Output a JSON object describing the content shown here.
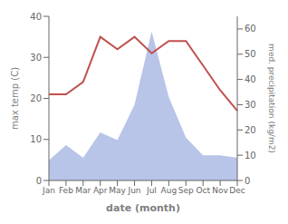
{
  "chart_data": {
    "type": "line",
    "categories": [
      "Jan",
      "Feb",
      "Mar",
      "Apr",
      "May",
      "Jun",
      "Jul",
      "Aug",
      "Sep",
      "Oct",
      "Nov",
      "Dec"
    ],
    "series": [
      {
        "type": "area",
        "axis": "y2",
        "color": "#b8c4e8",
        "values": [
          8,
          14,
          9,
          19,
          16,
          30,
          59,
          33,
          17,
          10,
          10,
          9
        ]
      },
      {
        "type": "line",
        "color": "#c0504d",
        "values": [
          21,
          21,
          24,
          35,
          32,
          35,
          31,
          34,
          34,
          28,
          22,
          17
        ]
      }
    ],
    "xlabel": "date (month)",
    "ylabel": "max temp (C)",
    "y2label": "med. precipitation (kg/m2)",
    "ylim": [
      0,
      40
    ],
    "yticks": [
      0,
      10,
      20,
      30,
      40
    ],
    "y2lim": [
      0,
      65
    ],
    "y2ticks": [
      0,
      10,
      20,
      30,
      40,
      50,
      60
    ]
  }
}
